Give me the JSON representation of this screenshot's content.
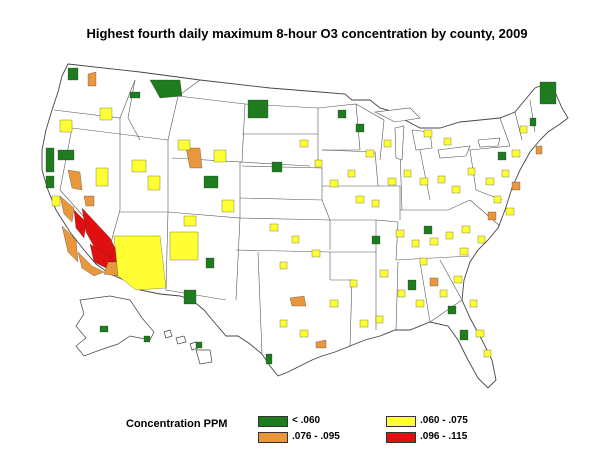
{
  "title": "Highest fourth daily maximum 8-hour O3 concentration by county, 2009",
  "legend": {
    "title": "Concentration PPM",
    "items": [
      {
        "label": "< .060",
        "color": "#1e7b1e"
      },
      {
        "label": ".060 - .075",
        "color": "#ffff33"
      },
      {
        "label": ".076 - .095",
        "color": "#e8973c"
      },
      {
        "label": ".096 - .115",
        "color": "#e01010"
      }
    ]
  },
  "colors": {
    "state_border": "#555555",
    "land": "#ffffff"
  }
}
